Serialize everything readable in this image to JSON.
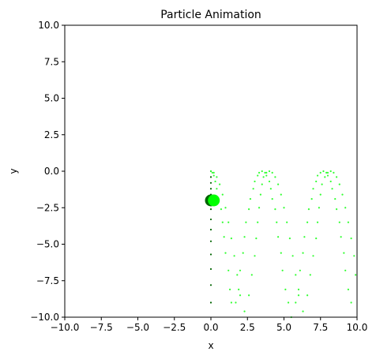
{
  "chart_data": {
    "type": "scatter",
    "title": "Particle Animation",
    "xlabel": "x",
    "ylabel": "y",
    "xlim": [
      -10,
      10
    ],
    "ylim": [
      -10,
      10
    ],
    "grid": false,
    "xticks": [
      "−10.0",
      "−7.5",
      "−5.0",
      "−2.5",
      "0.0",
      "2.5",
      "5.0",
      "7.5",
      "10.0"
    ],
    "xtick_values": [
      -10,
      -7.5,
      -5,
      -2.5,
      0,
      2.5,
      5,
      7.5,
      10
    ],
    "yticks": [
      "−10.0",
      "−7.5",
      "−5.0",
      "−2.5",
      "0.0",
      "2.5",
      "5.0",
      "7.5",
      "10.0"
    ],
    "ytick_values": [
      -10,
      -7.5,
      -5,
      -2.5,
      0,
      2.5,
      5,
      7.5,
      10
    ],
    "series": [
      {
        "color": "#006400",
        "marker_size": "small",
        "points": [
          [
            0,
            0
          ],
          [
            0,
            -0.4
          ],
          [
            0,
            -0.8
          ],
          [
            0,
            -1.2
          ],
          [
            0,
            -1.6
          ],
          [
            0,
            -2.0
          ],
          [
            0,
            -2.6
          ],
          [
            0,
            -3.3
          ],
          [
            0,
            -4.0
          ],
          [
            0,
            -4.8
          ],
          [
            0,
            -5.7
          ],
          [
            0,
            -6.7
          ],
          [
            0,
            -7.8
          ],
          [
            0,
            -9.0
          ]
        ]
      },
      {
        "color": "#33ff33",
        "marker_size": "small",
        "points": [
          [
            0,
            0
          ],
          [
            0.1,
            -0.1
          ],
          [
            0.2,
            -0.3
          ],
          [
            0.3,
            -0.7
          ],
          [
            0.4,
            -1.2
          ],
          [
            0.5,
            -1.9
          ],
          [
            0.7,
            -2.6
          ],
          [
            0.8,
            -3.5
          ],
          [
            0.9,
            -4.5
          ],
          [
            1.0,
            -5.6
          ],
          [
            1.2,
            -6.8
          ],
          [
            1.3,
            -8.1
          ],
          [
            1.4,
            -9.0
          ],
          [
            1.7,
            -9.0
          ],
          [
            1.9,
            -8.1
          ],
          [
            2.0,
            -6.8
          ],
          [
            2.2,
            -5.6
          ],
          [
            2.3,
            -4.5
          ],
          [
            2.4,
            -3.5
          ],
          [
            2.6,
            -2.6
          ],
          [
            2.7,
            -1.9
          ],
          [
            2.9,
            -1.2
          ],
          [
            3.0,
            -0.7
          ],
          [
            3.2,
            -0.3
          ],
          [
            3.3,
            -0.1
          ],
          [
            3.5,
            0
          ],
          [
            3.7,
            -0.1
          ],
          [
            3.8,
            -0.3
          ],
          [
            4.0,
            -0.7
          ],
          [
            4.1,
            -1.2
          ],
          [
            4.2,
            -1.9
          ],
          [
            4.4,
            -2.6
          ],
          [
            4.5,
            -3.5
          ],
          [
            4.6,
            -4.5
          ],
          [
            4.8,
            -5.6
          ],
          [
            4.9,
            -6.8
          ],
          [
            5.1,
            -8.1
          ],
          [
            5.3,
            -9.0
          ],
          [
            5.5,
            -10.0
          ],
          [
            5.8,
            -9.0
          ],
          [
            6.0,
            -8.1
          ],
          [
            6.1,
            -6.8
          ],
          [
            6.3,
            -5.6
          ],
          [
            6.4,
            -4.5
          ],
          [
            6.6,
            -3.5
          ],
          [
            6.7,
            -2.6
          ],
          [
            6.9,
            -1.9
          ],
          [
            7.0,
            -1.2
          ],
          [
            7.2,
            -0.7
          ],
          [
            7.3,
            -0.3
          ],
          [
            7.5,
            -0.1
          ],
          [
            7.7,
            0
          ],
          [
            7.9,
            -0.1
          ],
          [
            8.0,
            -0.3
          ],
          [
            8.2,
            -0.7
          ],
          [
            8.3,
            -1.2
          ],
          [
            8.5,
            -1.9
          ],
          [
            8.6,
            -2.6
          ],
          [
            8.8,
            -3.5
          ],
          [
            8.9,
            -4.5
          ],
          [
            9.1,
            -5.6
          ],
          [
            9.2,
            -6.8
          ],
          [
            9.4,
            -8.1
          ],
          [
            9.6,
            -9.0
          ]
        ]
      },
      {
        "color": "#33ff33",
        "marker_size": "small",
        "points": [
          [
            0.2,
            -0.1
          ],
          [
            0.4,
            -0.4
          ],
          [
            0.6,
            -0.9
          ],
          [
            0.8,
            -1.6
          ],
          [
            1.0,
            -2.5
          ],
          [
            1.2,
            -3.5
          ],
          [
            1.4,
            -4.6
          ],
          [
            1.6,
            -5.8
          ],
          [
            1.8,
            -7.1
          ],
          [
            2.0,
            -8.5
          ],
          [
            2.3,
            -9.6
          ],
          [
            2.6,
            -8.5
          ],
          [
            2.8,
            -7.1
          ],
          [
            3.0,
            -5.8
          ],
          [
            3.1,
            -4.6
          ],
          [
            3.2,
            -3.5
          ],
          [
            3.3,
            -2.5
          ],
          [
            3.4,
            -1.6
          ],
          [
            3.5,
            -0.9
          ],
          [
            3.6,
            -0.4
          ],
          [
            3.8,
            -0.1
          ],
          [
            4.0,
            0
          ],
          [
            4.2,
            -0.1
          ],
          [
            4.4,
            -0.4
          ],
          [
            4.6,
            -0.9
          ],
          [
            4.8,
            -1.6
          ],
          [
            5.0,
            -2.5
          ],
          [
            5.2,
            -3.5
          ],
          [
            5.4,
            -4.6
          ],
          [
            5.6,
            -5.8
          ],
          [
            5.8,
            -7.1
          ],
          [
            6.0,
            -8.5
          ],
          [
            6.3,
            -9.6
          ],
          [
            6.6,
            -8.5
          ],
          [
            6.8,
            -7.1
          ],
          [
            7.0,
            -5.8
          ],
          [
            7.2,
            -4.6
          ],
          [
            7.3,
            -3.5
          ],
          [
            7.4,
            -2.5
          ],
          [
            7.5,
            -1.6
          ],
          [
            7.6,
            -0.9
          ],
          [
            7.8,
            -0.4
          ],
          [
            8.0,
            -0.1
          ],
          [
            8.2,
            0
          ],
          [
            8.4,
            -0.1
          ],
          [
            8.6,
            -0.4
          ],
          [
            8.8,
            -0.9
          ],
          [
            9.0,
            -1.6
          ],
          [
            9.2,
            -2.5
          ],
          [
            9.4,
            -3.5
          ],
          [
            9.6,
            -4.6
          ],
          [
            9.8,
            -5.8
          ],
          [
            9.9,
            -7.1
          ]
        ]
      },
      {
        "color": "#006400",
        "marker_size": "large",
        "points": [
          [
            0,
            -2.0
          ]
        ]
      },
      {
        "color": "#00ff00",
        "marker_size": "large",
        "points": [
          [
            0.2,
            -2.0
          ]
        ]
      }
    ]
  }
}
